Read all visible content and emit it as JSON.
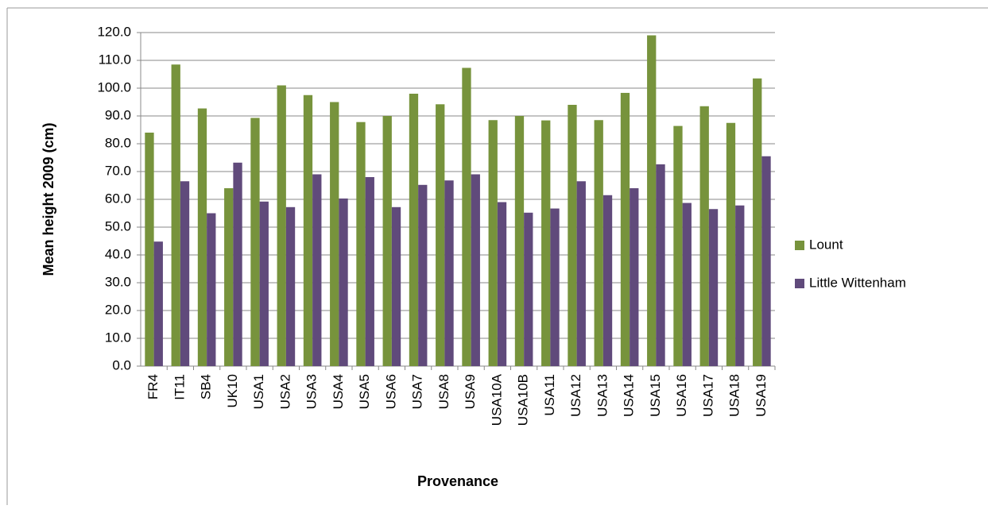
{
  "chart_data": {
    "type": "bar",
    "x_label": "Provenance",
    "y_label": "Mean height 2009 (cm)",
    "categories": [
      "FR4",
      "IT11",
      "SB4",
      "UK10",
      "USA1",
      "USA2",
      "USA3",
      "USA4",
      "USA5",
      "USA6",
      "USA7",
      "USA8",
      "USA9",
      "USA10A",
      "USA10B",
      "USA11",
      "USA12",
      "USA13",
      "USA14",
      "USA15",
      "USA16",
      "USA17",
      "USA18",
      "USA19"
    ],
    "series": [
      {
        "name": "Lount",
        "color": "#77933c",
        "values": [
          84,
          108.5,
          92.7,
          64,
          89.3,
          101,
          97.5,
          95,
          87.8,
          90,
          98,
          94.2,
          107.3,
          88.5,
          90,
          88.4,
          94,
          88.5,
          98.3,
          119,
          86.4,
          93.5,
          87.5,
          103.5
        ]
      },
      {
        "name": "Little Wittenham",
        "color": "#604a7b",
        "values": [
          44.8,
          66.5,
          55,
          73.2,
          59.2,
          57.2,
          69,
          60.3,
          68,
          57.2,
          65.2,
          66.8,
          69,
          59,
          55.2,
          56.7,
          66.5,
          61.5,
          64,
          72.6,
          58.7,
          56.5,
          57.8,
          75.5
        ]
      }
    ],
    "ylim": [
      0,
      120
    ],
    "yticks": [
      {
        "value": 0,
        "label": "0.0"
      },
      {
        "value": 10,
        "label": "10.0"
      },
      {
        "value": 20,
        "label": "20.0"
      },
      {
        "value": 30,
        "label": "30.0"
      },
      {
        "value": 40,
        "label": "40.0"
      },
      {
        "value": 50,
        "label": "50.0"
      },
      {
        "value": 60,
        "label": "60.0"
      },
      {
        "value": 70,
        "label": "70.0"
      },
      {
        "value": 80,
        "label": "80.0"
      },
      {
        "value": 90,
        "label": "90.0"
      },
      {
        "value": 100,
        "label": "100.0"
      },
      {
        "value": 110,
        "label": "110.0"
      },
      {
        "value": 120,
        "label": "120.0"
      }
    ],
    "grid": true,
    "legend": "right"
  }
}
